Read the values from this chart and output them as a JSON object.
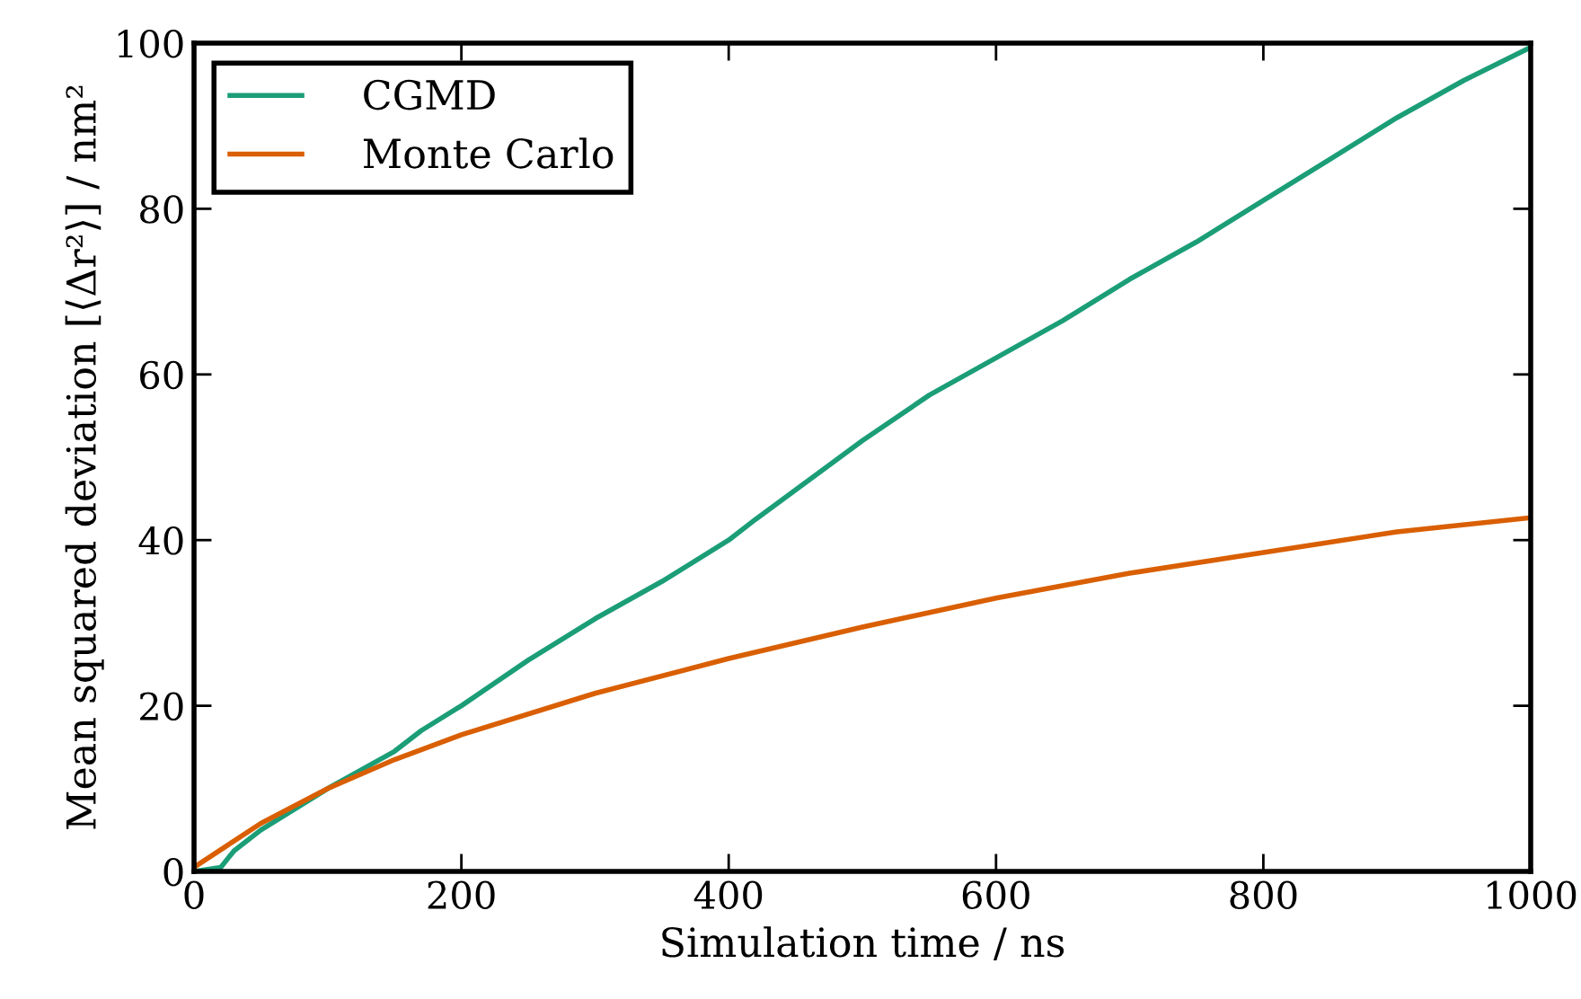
{
  "chart_data": {
    "type": "line",
    "xlabel": "Simulation time / ns",
    "ylabel": "Mean squared deviation [⟨Δr²⟩] / nm²",
    "xlim": [
      0,
      1000
    ],
    "ylim": [
      0,
      100
    ],
    "xticks": [
      0,
      200,
      400,
      600,
      800,
      1000
    ],
    "yticks": [
      0,
      20,
      40,
      60,
      80,
      100
    ],
    "grid": false,
    "legend": "top left",
    "line_style": "solid",
    "marker": "none",
    "series": [
      {
        "name": "CGMD",
        "color": "#1b9e77",
        "x": [
          0,
          20,
          30,
          50,
          100,
          150,
          170,
          200,
          250,
          300,
          350,
          400,
          420,
          500,
          550,
          600,
          650,
          700,
          750,
          800,
          850,
          900,
          950,
          1000
        ],
        "values": [
          0,
          0.5,
          2.5,
          5,
          10,
          14.5,
          17,
          20,
          25.5,
          30.5,
          35,
          40,
          42.5,
          52,
          57.5,
          62,
          66.5,
          71.5,
          76,
          81,
          86,
          91,
          95.5,
          99.5
        ]
      },
      {
        "name": "Monte Carlo",
        "color": "#d95f02",
        "x": [
          0,
          50,
          100,
          150,
          200,
          300,
          400,
          500,
          600,
          700,
          800,
          900,
          1000
        ],
        "values": [
          0.5,
          5.8,
          10,
          13.5,
          16.5,
          21.5,
          25.7,
          29.5,
          33,
          36,
          38.5,
          41,
          42.7
        ]
      }
    ]
  }
}
